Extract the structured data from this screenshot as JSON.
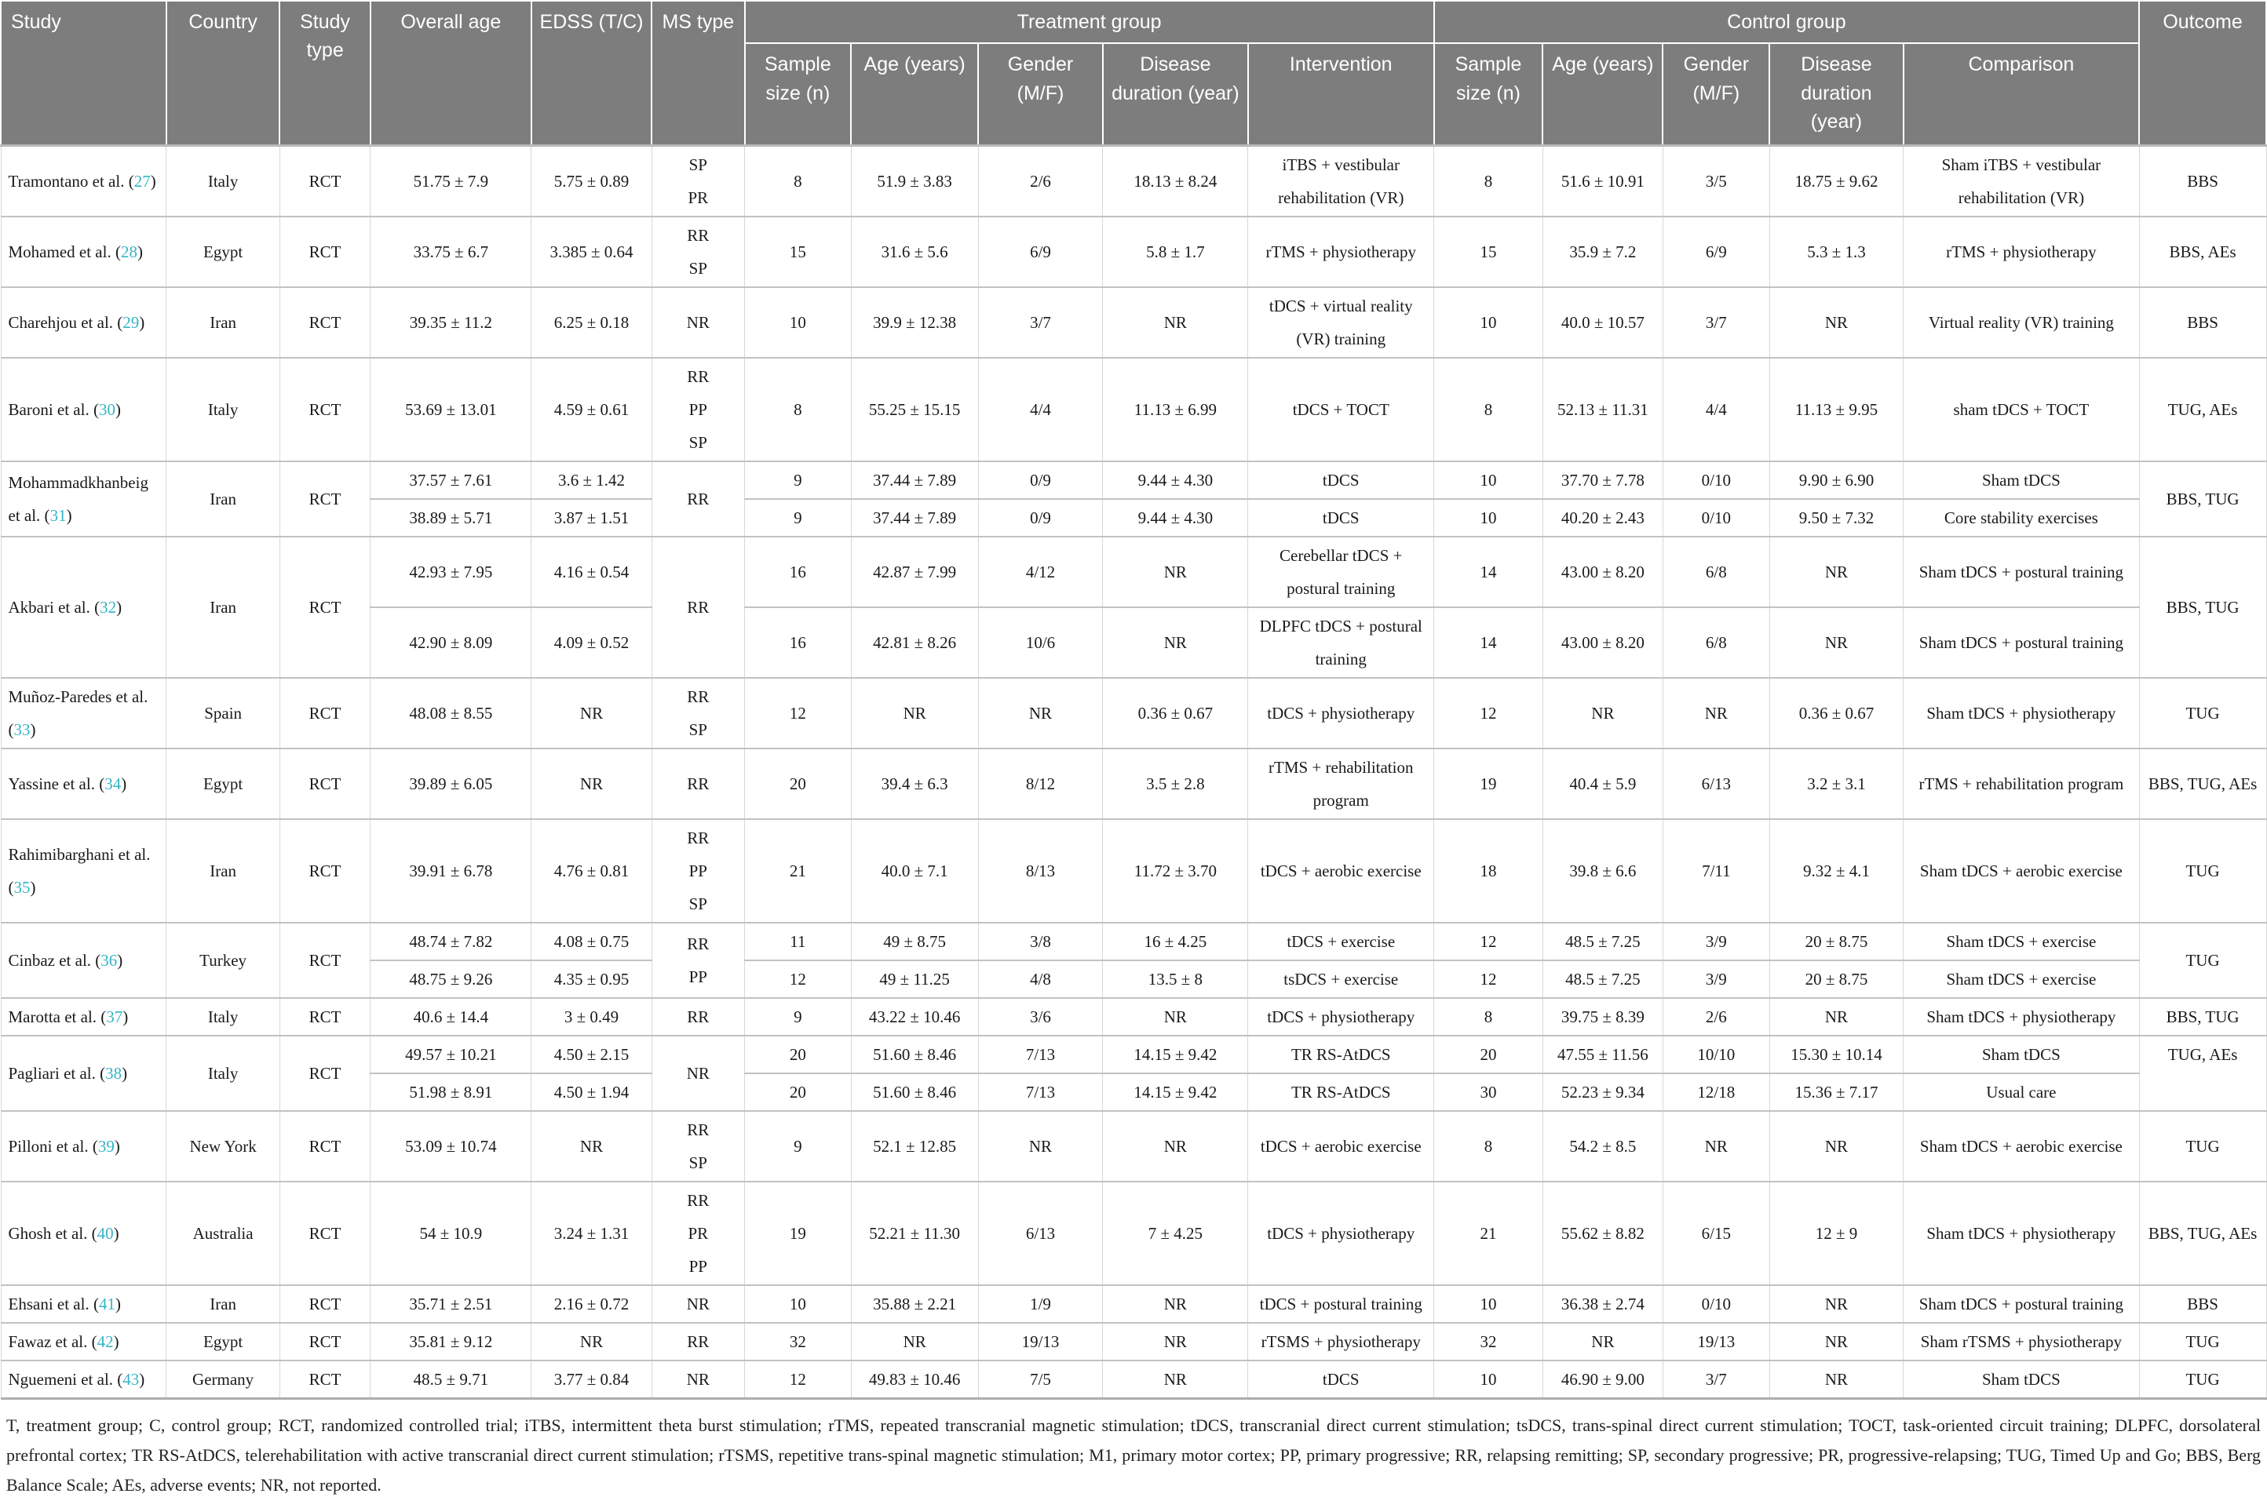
{
  "colors": {
    "header_bg": "#7d7d7d",
    "header_text": "#ffffff",
    "ref_accent": "#35b4c6",
    "grid_line": "#c2c2c2"
  },
  "header": {
    "study": "Study",
    "country": "Country",
    "study_type": "Study type",
    "overall_age": "Overall age",
    "edss": "EDSS (T/C)",
    "ms_type": "MS type",
    "treatment_group": "Treatment group",
    "control_group": "Control group",
    "outcome": "Outcome",
    "sub": {
      "sample_size": "Sample size (n)",
      "age": "Age (years)",
      "gender": "Gender (M/F)",
      "disease_duration": "Disease duration (year)",
      "intervention": "Intervention",
      "comparison": "Comparison"
    }
  },
  "rows": [
    {
      "study": "Tramontano et al.",
      "ref": "27",
      "country": "Italy",
      "study_type": "RCT",
      "ms_type": [
        "SP",
        "PR"
      ],
      "outcome": "BBS",
      "subrows": [
        {
          "overall_age": "51.75 ± 7.9",
          "edss": "5.75 ± 0.89",
          "treatment": {
            "n": "8",
            "age": "51.9 ± 3.83",
            "gender": "2/6",
            "duration": "18.13 ± 8.24",
            "intervention": "iTBS + vestibular rehabilitation (VR)"
          },
          "control": {
            "n": "8",
            "age": "51.6 ± 10.91",
            "gender": "3/5",
            "duration": "18.75 ± 9.62",
            "comparison": "Sham iTBS + vestibular rehabilitation (VR)"
          }
        }
      ]
    },
    {
      "study": "Mohamed et al.",
      "ref": "28",
      "country": "Egypt",
      "study_type": "RCT",
      "ms_type": [
        "RR",
        "SP"
      ],
      "outcome": "BBS, AEs",
      "subrows": [
        {
          "overall_age": "33.75 ± 6.7",
          "edss": "3.385 ± 0.64",
          "treatment": {
            "n": "15",
            "age": "31.6 ± 5.6",
            "gender": "6/9",
            "duration": "5.8 ± 1.7",
            "intervention": "rTMS + physiotherapy"
          },
          "control": {
            "n": "15",
            "age": "35.9 ± 7.2",
            "gender": "6/9",
            "duration": "5.3 ± 1.3",
            "comparison": "rTMS + physiotherapy"
          }
        }
      ]
    },
    {
      "study": "Charehjou et al.",
      "ref": "29",
      "country": "Iran",
      "study_type": "RCT",
      "ms_type": [
        "NR"
      ],
      "outcome": "BBS",
      "subrows": [
        {
          "overall_age": "39.35 ± 11.2",
          "edss": "6.25 ± 0.18",
          "treatment": {
            "n": "10",
            "age": "39.9 ± 12.38",
            "gender": "3/7",
            "duration": "NR",
            "intervention": "tDCS + virtual reality (VR) training"
          },
          "control": {
            "n": "10",
            "age": "40.0 ± 10.57",
            "gender": "3/7",
            "duration": "NR",
            "comparison": "Virtual reality (VR) training"
          }
        }
      ]
    },
    {
      "study": "Baroni et al.",
      "ref": "30",
      "country": "Italy",
      "study_type": "RCT",
      "ms_type": [
        "RR",
        "PP",
        "SP"
      ],
      "outcome": "TUG, AEs",
      "subrows": [
        {
          "overall_age": "53.69 ± 13.01",
          "edss": "4.59 ± 0.61",
          "treatment": {
            "n": "8",
            "age": "55.25 ± 15.15",
            "gender": "4/4",
            "duration": "11.13 ± 6.99",
            "intervention": "tDCS + TOCT"
          },
          "control": {
            "n": "8",
            "age": "52.13 ± 11.31",
            "gender": "4/4",
            "duration": "11.13 ± 9.95",
            "comparison": "sham tDCS + TOCT"
          }
        }
      ]
    },
    {
      "study": "Mohammadkhanbeig et al.",
      "ref": "31",
      "country": "Iran",
      "study_type": "RCT",
      "ms_type": [
        "RR"
      ],
      "outcome": "BBS, TUG",
      "subrows": [
        {
          "overall_age": "37.57 ± 7.61",
          "edss": "3.6 ± 1.42",
          "treatment": {
            "n": "9",
            "age": "37.44 ± 7.89",
            "gender": "0/9",
            "duration": "9.44 ± 4.30",
            "intervention": "tDCS"
          },
          "control": {
            "n": "10",
            "age": "37.70 ± 7.78",
            "gender": "0/10",
            "duration": "9.90 ± 6.90",
            "comparison": "Sham tDCS"
          }
        },
        {
          "overall_age": "38.89 ± 5.71",
          "edss": "3.87 ± 1.51",
          "treatment": {
            "n": "9",
            "age": "37.44 ± 7.89",
            "gender": "0/9",
            "duration": "9.44 ± 4.30",
            "intervention": "tDCS"
          },
          "control": {
            "n": "10",
            "age": "40.20 ± 2.43",
            "gender": "0/10",
            "duration": "9.50 ± 7.32",
            "comparison": "Core stability exercises"
          }
        }
      ]
    },
    {
      "study": "Akbari et al.",
      "ref": "32",
      "country": "Iran",
      "study_type": "RCT",
      "ms_type": [
        "RR"
      ],
      "outcome": "BBS, TUG",
      "subrows": [
        {
          "overall_age": "42.93 ± 7.95",
          "edss": "4.16 ± 0.54",
          "treatment": {
            "n": "16",
            "age": "42.87 ± 7.99",
            "gender": "4/12",
            "duration": "NR",
            "intervention": "Cerebellar tDCS + postural training"
          },
          "control": {
            "n": "14",
            "age": "43.00 ± 8.20",
            "gender": "6/8",
            "duration": "NR",
            "comparison": "Sham tDCS + postural training"
          }
        },
        {
          "overall_age": "42.90 ± 8.09",
          "edss": "4.09 ± 0.52",
          "treatment": {
            "n": "16",
            "age": "42.81 ± 8.26",
            "gender": "10/6",
            "duration": "NR",
            "intervention": "DLPFC tDCS + postural training"
          },
          "control": {
            "n": "14",
            "age": "43.00 ± 8.20",
            "gender": "6/8",
            "duration": "NR",
            "comparison": "Sham tDCS + postural training"
          }
        }
      ]
    },
    {
      "study": "Muñoz-Paredes et al.",
      "ref": "33",
      "country": "Spain",
      "study_type": "RCT",
      "ms_type": [
        "RR",
        "SP"
      ],
      "outcome": "TUG",
      "subrows": [
        {
          "overall_age": "48.08 ± 8.55",
          "edss": "NR",
          "treatment": {
            "n": "12",
            "age": "NR",
            "gender": "NR",
            "duration": "0.36 ± 0.67",
            "intervention": "tDCS + physiotherapy"
          },
          "control": {
            "n": "12",
            "age": "NR",
            "gender": "NR",
            "duration": "0.36 ± 0.67",
            "comparison": "Sham tDCS + physiotherapy"
          }
        }
      ]
    },
    {
      "study": "Yassine et al.",
      "ref": "34",
      "country": "Egypt",
      "study_type": "RCT",
      "ms_type": [
        "RR"
      ],
      "outcome": "BBS, TUG, AEs",
      "subrows": [
        {
          "overall_age": "39.89 ± 6.05",
          "edss": "NR",
          "treatment": {
            "n": "20",
            "age": "39.4 ± 6.3",
            "gender": "8/12",
            "duration": "3.5 ± 2.8",
            "intervention": "rTMS + rehabilitation program"
          },
          "control": {
            "n": "19",
            "age": "40.4 ± 5.9",
            "gender": "6/13",
            "duration": "3.2 ± 3.1",
            "comparison": "rTMS + rehabilitation program"
          }
        }
      ]
    },
    {
      "study": "Rahimibarghani et al.",
      "ref": "35",
      "country": "Iran",
      "study_type": "RCT",
      "ms_type": [
        "RR",
        "PP",
        "SP"
      ],
      "outcome": "TUG",
      "subrows": [
        {
          "overall_age": "39.91 ± 6.78",
          "edss": "4.76 ± 0.81",
          "treatment": {
            "n": "21",
            "age": "40.0 ± 7.1",
            "gender": "8/13",
            "duration": "11.72 ± 3.70",
            "intervention": "tDCS + aerobic exercise"
          },
          "control": {
            "n": "18",
            "age": "39.8 ± 6.6",
            "gender": "7/11",
            "duration": "9.32 ± 4.1",
            "comparison": "Sham tDCS + aerobic exercise"
          }
        }
      ]
    },
    {
      "study": "Cinbaz et al.",
      "ref": "36",
      "country": "Turkey",
      "study_type": "RCT",
      "ms_type": [
        "RR",
        "PP"
      ],
      "outcome": "TUG",
      "subrows": [
        {
          "overall_age": "48.74 ± 7.82",
          "edss": "4.08 ± 0.75",
          "treatment": {
            "n": "11",
            "age": "49 ± 8.75",
            "gender": "3/8",
            "duration": "16 ± 4.25",
            "intervention": "tDCS + exercise"
          },
          "control": {
            "n": "12",
            "age": "48.5 ± 7.25",
            "gender": "3/9",
            "duration": "20 ± 8.75",
            "comparison": "Sham tDCS + exercise"
          }
        },
        {
          "overall_age": "48.75 ± 9.26",
          "edss": "4.35 ± 0.95",
          "treatment": {
            "n": "12",
            "age": "49 ± 11.25",
            "gender": "4/8",
            "duration": "13.5 ± 8",
            "intervention": "tsDCS + exercise"
          },
          "control": {
            "n": "12",
            "age": "48.5 ± 7.25",
            "gender": "3/9",
            "duration": "20 ± 8.75",
            "comparison": "Sham tDCS + exercise"
          }
        }
      ]
    },
    {
      "study": "Marotta et al.",
      "ref": "37",
      "country": "Italy",
      "study_type": "RCT",
      "ms_type": [
        "RR"
      ],
      "outcome": "BBS, TUG",
      "subrows": [
        {
          "overall_age": "40.6 ± 14.4",
          "edss": "3 ± 0.49",
          "treatment": {
            "n": "9",
            "age": "43.22 ± 10.46",
            "gender": "3/6",
            "duration": "NR",
            "intervention": "tDCS + physiotherapy"
          },
          "control": {
            "n": "8",
            "age": "39.75 ± 8.39",
            "gender": "2/6",
            "duration": "NR",
            "comparison": "Sham tDCS + physiotherapy"
          }
        }
      ]
    },
    {
      "study": "Pagliari et al.",
      "ref": "38",
      "country": "Italy",
      "study_type": "RCT",
      "ms_type": [
        "NR"
      ],
      "outcome": "TUG, AEs",
      "outcome_align": "top",
      "subrows": [
        {
          "overall_age": "49.57 ± 10.21",
          "edss": "4.50 ± 2.15",
          "treatment": {
            "n": "20",
            "age": "51.60 ± 8.46",
            "gender": "7/13",
            "duration": "14.15 ± 9.42",
            "intervention": "TR RS-AtDCS"
          },
          "control": {
            "n": "20",
            "age": "47.55 ± 11.56",
            "gender": "10/10",
            "duration": "15.30 ± 10.14",
            "comparison": "Sham tDCS"
          }
        },
        {
          "overall_age": "51.98 ± 8.91",
          "edss": "4.50 ± 1.94",
          "treatment": {
            "n": "20",
            "age": "51.60 ± 8.46",
            "gender": "7/13",
            "duration": "14.15 ± 9.42",
            "intervention": "TR RS-AtDCS"
          },
          "control": {
            "n": "30",
            "age": "52.23 ± 9.34",
            "gender": "12/18",
            "duration": "15.36 ± 7.17",
            "comparison": "Usual care"
          }
        }
      ]
    },
    {
      "study": "Pilloni et al.",
      "ref": "39",
      "country": "New York",
      "study_type": "RCT",
      "ms_type": [
        "RR",
        "SP"
      ],
      "outcome": "TUG",
      "subrows": [
        {
          "overall_age": "53.09 ± 10.74",
          "edss": "NR",
          "treatment": {
            "n": "9",
            "age": "52.1 ± 12.85",
            "gender": "NR",
            "duration": "NR",
            "intervention": "tDCS + aerobic exercise"
          },
          "control": {
            "n": "8",
            "age": "54.2 ± 8.5",
            "gender": "NR",
            "duration": "NR",
            "comparison": "Sham tDCS + aerobic exercise"
          }
        }
      ]
    },
    {
      "study": "Ghosh et al.",
      "ref": "40",
      "country": "Australia",
      "study_type": "RCT",
      "ms_type": [
        "RR",
        "PR",
        "PP"
      ],
      "outcome": "BBS, TUG, AEs",
      "subrows": [
        {
          "overall_age": "54 ± 10.9",
          "edss": "3.24 ± 1.31",
          "treatment": {
            "n": "19",
            "age": "52.21 ± 11.30",
            "gender": "6/13",
            "duration": "7 ± 4.25",
            "intervention": "tDCS + physiotherapy"
          },
          "control": {
            "n": "21",
            "age": "55.62 ± 8.82",
            "gender": "6/15",
            "duration": "12 ± 9",
            "comparison": "Sham tDCS + physiotherapy"
          }
        }
      ]
    },
    {
      "study": "Ehsani et al.",
      "ref": "41",
      "country": "Iran",
      "study_type": "RCT",
      "ms_type": [
        "NR"
      ],
      "outcome": "BBS",
      "subrows": [
        {
          "overall_age": "35.71 ± 2.51",
          "edss": "2.16 ± 0.72",
          "treatment": {
            "n": "10",
            "age": "35.88 ± 2.21",
            "gender": "1/9",
            "duration": "NR",
            "intervention": "tDCS + postural training"
          },
          "control": {
            "n": "10",
            "age": "36.38 ± 2.74",
            "gender": "0/10",
            "duration": "NR",
            "comparison": "Sham tDCS + postural training"
          }
        }
      ]
    },
    {
      "study": "Fawaz et al.",
      "ref": "42",
      "country": "Egypt",
      "study_type": "RCT",
      "ms_type": [
        "RR"
      ],
      "outcome": "TUG",
      "subrows": [
        {
          "overall_age": "35.81 ± 9.12",
          "edss": "NR",
          "treatment": {
            "n": "32",
            "age": "NR",
            "gender": "19/13",
            "duration": "NR",
            "intervention": "rTSMS + physiotherapy"
          },
          "control": {
            "n": "32",
            "age": "NR",
            "gender": "19/13",
            "duration": "NR",
            "comparison": "Sham rTSMS + physiotherapy"
          }
        }
      ]
    },
    {
      "study": "Nguemeni et al.",
      "ref": "43",
      "country": "Germany",
      "study_type": "RCT",
      "ms_type": [
        "NR"
      ],
      "outcome": "TUG",
      "subrows": [
        {
          "overall_age": "48.5 ± 9.71",
          "edss": "3.77 ± 0.84",
          "treatment": {
            "n": "12",
            "age": "49.83 ± 10.46",
            "gender": "7/5",
            "duration": "NR",
            "intervention": "tDCS"
          },
          "control": {
            "n": "10",
            "age": "46.90 ± 9.00",
            "gender": "3/7",
            "duration": "NR",
            "comparison": "Sham tDCS"
          }
        }
      ]
    }
  ],
  "footnote": "T, treatment group; C, control group; RCT, randomized controlled trial; iTBS, intermittent theta burst stimulation; rTMS, repeated transcranial magnetic stimulation; tDCS, transcranial direct current stimulation; tsDCS, trans-spinal direct current stimulation; TOCT, task-oriented circuit training; DLPFC, dorsolateral prefrontal cortex; TR RS-AtDCS, telerehabilitation with active transcranial direct current stimulation; rTSMS, repetitive trans-spinal magnetic stimulation; M1, primary motor cortex; PP, primary progressive; RR, relapsing remitting; SP, secondary progressive; PR, progressive-relapsing; TUG, Timed Up and Go; BBS, Berg Balance Scale; AEs, adverse events; NR, not reported."
}
